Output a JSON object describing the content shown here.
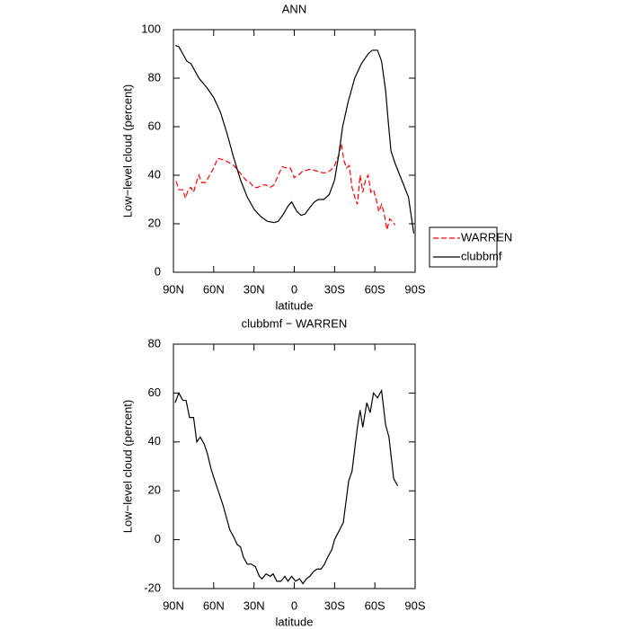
{
  "chart_data": [
    {
      "type": "line",
      "title": "ANN",
      "xlabel": "latitude",
      "ylabel": "Low−level cloud (percent)",
      "xlim": [
        90,
        -90
      ],
      "xticks": [
        {
          "value": 90,
          "label": "90N"
        },
        {
          "value": 60,
          "label": "60N"
        },
        {
          "value": 30,
          "label": "30N"
        },
        0,
        {
          "value": -30,
          "label": "30S"
        },
        {
          "value": -60,
          "label": "60S"
        },
        {
          "value": -90,
          "label": "90S"
        }
      ],
      "ylim": [
        0,
        100
      ],
      "yticks": [
        0,
        20,
        40,
        60,
        80,
        100
      ],
      "legend": "right",
      "series": [
        {
          "name": "WARREN",
          "color": "#ff0000",
          "linestyle": "dashed",
          "x": [
            88,
            86,
            83,
            81,
            79,
            77,
            75,
            73,
            71,
            69,
            66,
            63,
            60,
            57,
            54,
            51,
            48,
            45,
            42,
            39,
            36,
            33,
            30,
            27,
            24,
            21,
            18,
            15,
            12,
            9,
            6,
            3,
            0,
            -3,
            -6,
            -9,
            -12,
            -15,
            -18,
            -21,
            -24,
            -27,
            -30,
            -33,
            -35,
            -37,
            -39,
            -41,
            -43,
            -45,
            -47,
            -49,
            -51,
            -53,
            -55,
            -57,
            -59,
            -61,
            -63,
            -65,
            -67,
            -69,
            -71,
            -73,
            -75
          ],
          "values": [
            37.5,
            34,
            34,
            30.5,
            34,
            35,
            33,
            37,
            40,
            37,
            37,
            40,
            43,
            47,
            46.5,
            46,
            45,
            44,
            42,
            40,
            38,
            37,
            35,
            35,
            36,
            36,
            35,
            36,
            40,
            43.5,
            43,
            43,
            39,
            40,
            41.5,
            42,
            42.5,
            42,
            41.5,
            41,
            41,
            42,
            44,
            48,
            53,
            46,
            43,
            44,
            35,
            31,
            28,
            40,
            33,
            38,
            40,
            33,
            34,
            30,
            25,
            28,
            24,
            17.5,
            22,
            21,
            19.5
          ]
        },
        {
          "name": "clubbmf",
          "color": "#000000",
          "linestyle": "solid",
          "x": [
            88.5,
            86,
            83,
            80,
            77,
            74,
            71,
            65,
            60,
            55,
            50,
            45,
            40,
            35,
            30,
            25,
            20,
            15,
            12,
            8,
            5,
            2,
            0,
            -2,
            -5,
            -8,
            -12,
            -15,
            -18,
            -22,
            -26,
            -30,
            -33,
            -36,
            -40,
            -45,
            -50,
            -55,
            -58,
            -62,
            -65,
            -68,
            -70,
            -72,
            -75,
            -80,
            -85,
            -89
          ],
          "values": [
            93.5,
            93,
            90,
            87,
            86,
            83,
            80,
            76,
            72,
            66,
            57,
            47,
            38,
            31,
            26,
            23,
            21,
            20.5,
            21,
            24,
            27,
            29,
            27,
            25,
            23.5,
            24,
            27,
            29,
            30,
            30,
            32,
            38,
            48,
            60,
            70,
            80,
            86,
            90,
            91.5,
            91.5,
            87,
            75,
            62,
            50,
            45,
            38,
            31,
            16
          ]
        }
      ]
    },
    {
      "type": "line",
      "title": "clubbmf − WARREN",
      "xlabel": "latitude",
      "ylabel": "Low−level cloud (percent)",
      "xlim": [
        90,
        -90
      ],
      "xticks": [
        {
          "value": 90,
          "label": "90N"
        },
        {
          "value": 60,
          "label": "60N"
        },
        {
          "value": 30,
          "label": "30N"
        },
        0,
        {
          "value": -30,
          "label": "30S"
        },
        {
          "value": -60,
          "label": "60S"
        },
        {
          "value": -90,
          "label": "90S"
        }
      ],
      "ylim": [
        -20,
        80
      ],
      "yticks": [
        -20,
        0,
        20,
        40,
        60,
        80
      ],
      "series": [
        {
          "color": "#000000",
          "linestyle": "solid",
          "x": [
            88.7,
            86,
            83,
            80.6,
            78,
            75,
            72.6,
            70,
            67,
            64.6,
            62,
            58.5,
            56,
            53,
            51,
            48,
            45,
            42.5,
            40,
            38,
            35,
            32,
            29,
            26,
            24,
            21,
            18,
            15.7,
            13,
            10,
            7,
            4.7,
            2,
            -1,
            -4,
            -6.4,
            -9,
            -11.5,
            -14.4,
            -17,
            -20,
            -22.5,
            -25,
            -28,
            -30,
            -36.5,
            -40.5,
            -43,
            -47,
            -49,
            -51,
            -54,
            -56.5,
            -59,
            -62,
            -65,
            -68,
            -70.5,
            -74,
            -77
          ],
          "values": [
            56,
            60,
            57,
            57,
            50,
            50,
            40,
            42,
            39,
            35,
            29,
            23,
            19,
            14,
            10,
            4,
            1,
            -2,
            -3,
            -7,
            -10,
            -10,
            -11,
            -15,
            -16,
            -14,
            -15,
            -14,
            -17,
            -17,
            -15,
            -17,
            -15,
            -17,
            -16,
            -18,
            -16,
            -15,
            -13,
            -12,
            -12,
            -10,
            -7,
            -4,
            0,
            7,
            24,
            28,
            46,
            53,
            46,
            56,
            52,
            60,
            58,
            61,
            47,
            42,
            25,
            22
          ]
        }
      ]
    }
  ]
}
